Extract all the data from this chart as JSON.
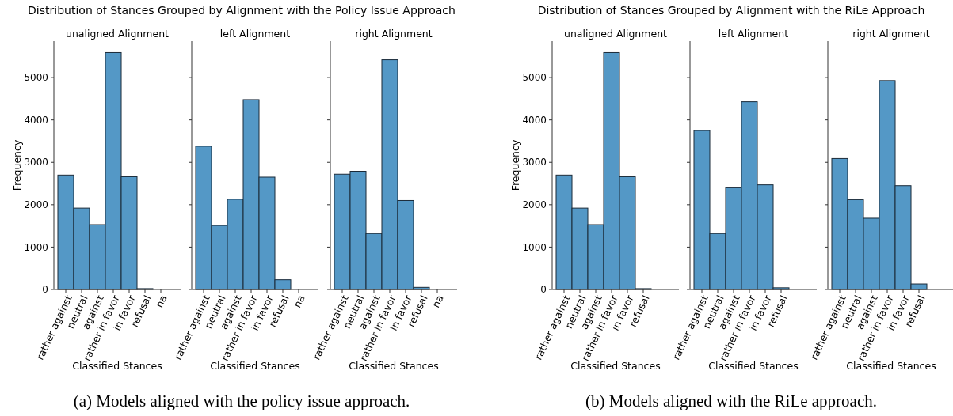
{
  "chart_data": [
    {
      "type": "bar",
      "title": "unaligned Alignment",
      "xlabel": "Classified Stances",
      "ylabel": "Frequency",
      "categories": [
        "rather against",
        "neutral",
        "against",
        "rather in favor",
        "in favor",
        "refusal",
        "na"
      ],
      "values": [
        2700,
        1920,
        1530,
        5590,
        2660,
        20,
        0
      ],
      "color": "#5498c6",
      "ylim": [
        0,
        5860
      ],
      "yticks": [
        0,
        1000,
        2000,
        3000,
        4000,
        5000
      ],
      "grid": false,
      "annotations": [
        "Distribution of Stances Grouped by Alignment with the Policy Issue Approach",
        "(a) Models aligned with the policy issue approach."
      ]
    },
    {
      "type": "bar",
      "title": "left Alignment",
      "xlabel": "Classified Stances",
      "categories": [
        "rather against",
        "neutral",
        "against",
        "rather in favor",
        "in favor",
        "refusal",
        "na"
      ],
      "values": [
        3380,
        1510,
        2130,
        4480,
        2650,
        230,
        0
      ],
      "color": "#5498c6",
      "ylim": [
        0,
        5860
      ],
      "yticks": [
        0,
        1000,
        2000,
        3000,
        4000,
        5000
      ],
      "tick_labels": "x",
      "grid": false
    },
    {
      "type": "bar",
      "title": "right Alignment",
      "xlabel": "Classified Stances",
      "categories": [
        "rather against",
        "neutral",
        "against",
        "rather in favor",
        "in favor",
        "refusal",
        "na"
      ],
      "values": [
        2720,
        2790,
        1320,
        5420,
        2100,
        50,
        0
      ],
      "color": "#5498c6",
      "ylim": [
        0,
        5860
      ],
      "yticks": [
        0,
        1000,
        2000,
        3000,
        4000,
        5000
      ],
      "tick_labels": "x",
      "grid": false
    },
    {
      "type": "bar",
      "title": "unaligned Alignment",
      "xlabel": "Classified Stances",
      "ylabel": "Frequency",
      "categories": [
        "rather against",
        "neutral",
        "against",
        "rather in favor",
        "in favor",
        "refusal"
      ],
      "values": [
        2700,
        1920,
        1530,
        5590,
        2660,
        20
      ],
      "color": "#5498c6",
      "ylim": [
        0,
        5860
      ],
      "yticks": [
        0,
        1000,
        2000,
        3000,
        4000,
        5000
      ],
      "grid": false,
      "annotations": [
        "Distribution of Stances Grouped by Alignment with the RiLe Approach",
        "(b) Models aligned with the RiLe approach."
      ]
    },
    {
      "type": "bar",
      "title": "left Alignment",
      "xlabel": "Classified Stances",
      "categories": [
        "rather against",
        "neutral",
        "against",
        "rather in favor",
        "in favor",
        "refusal"
      ],
      "values": [
        3750,
        1320,
        2400,
        4430,
        2470,
        40
      ],
      "color": "#5498c6",
      "ylim": [
        0,
        5860
      ],
      "yticks": [
        0,
        1000,
        2000,
        3000,
        4000,
        5000
      ],
      "tick_labels": "x",
      "grid": false
    },
    {
      "type": "bar",
      "title": "right Alignment",
      "xlabel": "Classified Stances",
      "categories": [
        "rather against",
        "neutral",
        "against",
        "rather in favor",
        "in favor",
        "refusal"
      ],
      "values": [
        3090,
        2120,
        1680,
        4930,
        2450,
        130
      ],
      "color": "#5498c6",
      "ylim": [
        0,
        5860
      ],
      "yticks": [
        0,
        1000,
        2000,
        3000,
        4000,
        5000
      ],
      "tick_labels": "x",
      "grid": false
    }
  ]
}
